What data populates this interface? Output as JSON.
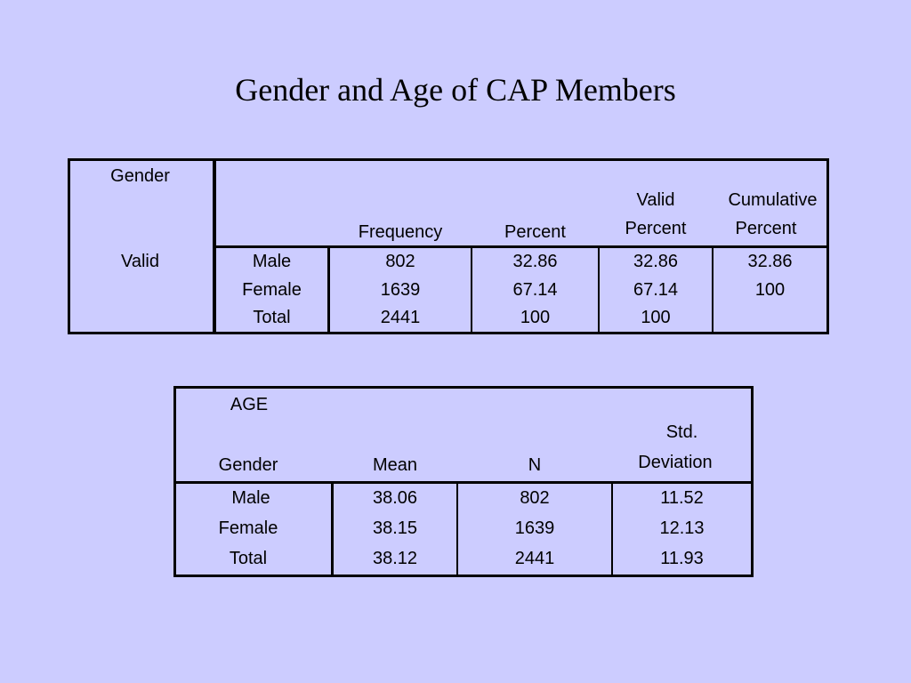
{
  "title": "Gender and Age of CAP Members",
  "gender_table": {
    "corner_label": "Gender",
    "group_label": "Valid",
    "headers": {
      "frequency": "Frequency",
      "percent": "Percent",
      "valid_percent_line1": "Valid",
      "valid_percent_line2": "Percent",
      "cumulative_percent_line1": "Cumulative",
      "cumulative_percent_line2": "Percent"
    },
    "rows": [
      {
        "label": "Male",
        "frequency": "802",
        "percent": "32.86",
        "valid_percent": "32.86",
        "cumulative_percent": "32.86"
      },
      {
        "label": "Female",
        "frequency": "1639",
        "percent": "67.14",
        "valid_percent": "67.14",
        "cumulative_percent": "100"
      },
      {
        "label": "Total",
        "frequency": "2441",
        "percent": "100",
        "valid_percent": "100",
        "cumulative_percent": ""
      }
    ]
  },
  "age_table": {
    "corner_label": "AGE",
    "headers": {
      "gender": "Gender",
      "mean": "Mean",
      "n": "N",
      "std_line1": "Std.",
      "std_line2": "Deviation"
    },
    "rows": [
      {
        "label": "Male",
        "mean": "38.06",
        "n": "802",
        "std": "11.52"
      },
      {
        "label": "Female",
        "mean": "38.15",
        "n": "1639",
        "std": "12.13"
      },
      {
        "label": "Total",
        "mean": "38.12",
        "n": "2441",
        "std": "11.93"
      }
    ]
  }
}
